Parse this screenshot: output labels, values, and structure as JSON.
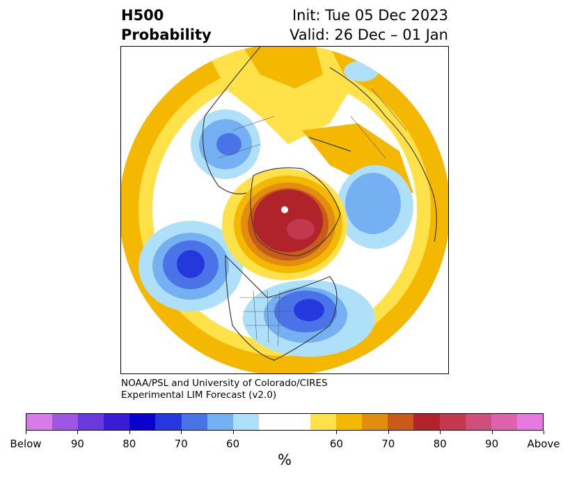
{
  "title": {
    "left_line1": "H500",
    "left_line2": "Probability",
    "right_line1": "Init: Tue 05 Dec 2023",
    "right_line2": "Valid: 26 Dec – 01 Jan"
  },
  "credit": {
    "line1": "NOAA/PSL and University of Colorado/CIRES",
    "line2": "Experimental LIM Forecast (v2.0)"
  },
  "colorbar": {
    "colors": [
      "#d77be8",
      "#9e57e3",
      "#6a39d9",
      "#3a1cd6",
      "#0a00cc",
      "#2438dd",
      "#4b73e8",
      "#74b0f2",
      "#aee0fa",
      "#ffffff",
      "#ffffff",
      "#ffe14a",
      "#f4b800",
      "#e08d10",
      "#c85a1a",
      "#b1232a",
      "#c2384c",
      "#cf4f7c",
      "#dc62ab",
      "#e77ae0"
    ],
    "labels": [
      "Below",
      "90",
      "80",
      "70",
      "60",
      "60",
      "70",
      "80",
      "90",
      "Above"
    ],
    "unit": "%"
  },
  "map": {
    "projection": "north-polar-stereographic",
    "features": [
      "coastlines",
      "country-borders",
      "state-borders"
    ],
    "regions": [
      {
        "name": "Arctic / Greenland",
        "category": "above",
        "peak": "80-90"
      },
      {
        "name": "Eastern United States",
        "category": "below",
        "peak": "80-90"
      },
      {
        "name": "North Pacific",
        "category": "below",
        "peak": "80-90"
      },
      {
        "name": "Eastern Asia / Siberia",
        "category": "below",
        "peak": "60-70"
      },
      {
        "name": "Central Asia",
        "category": "below",
        "peak": "70-80"
      },
      {
        "name": "Europe / Western Russia",
        "category": "above",
        "peak": "60-70"
      },
      {
        "name": "Subtropical Atlantic",
        "category": "above",
        "peak": "70-80"
      },
      {
        "name": "Subtropical Pacific",
        "category": "above",
        "peak": "60-70"
      }
    ]
  }
}
